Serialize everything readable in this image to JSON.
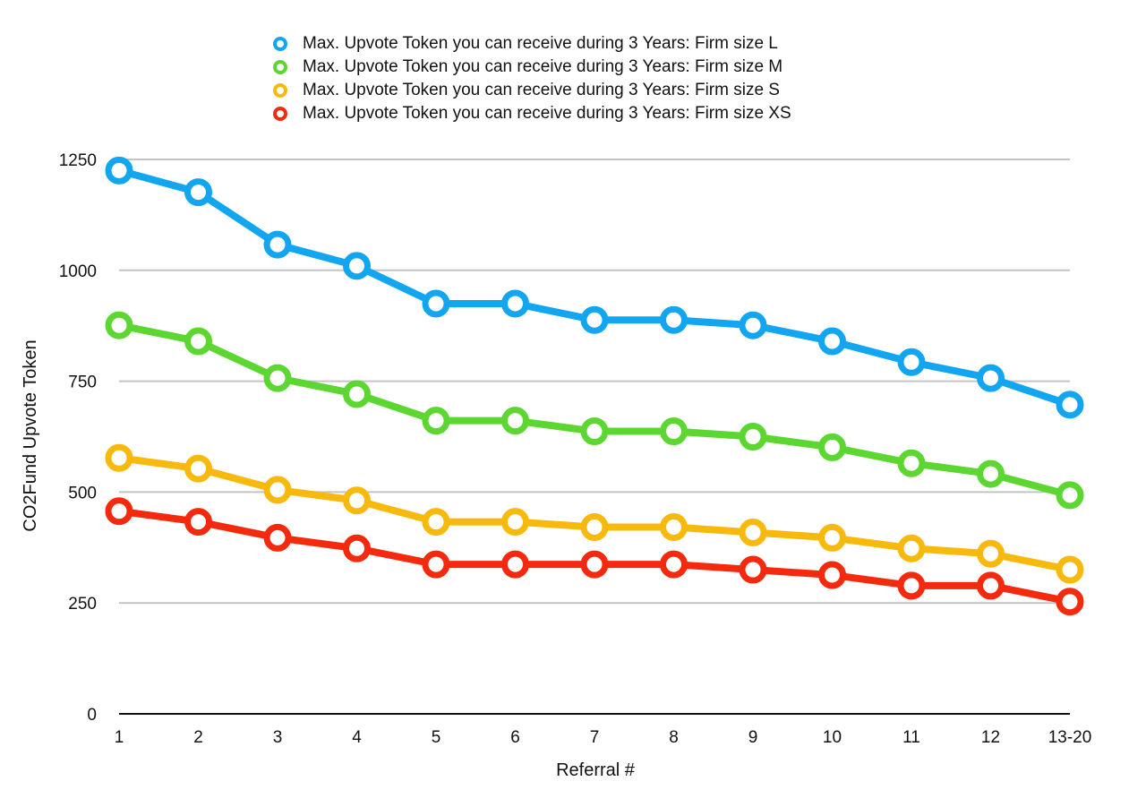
{
  "chart_data": {
    "type": "line",
    "title": "",
    "xlabel": "Referral #",
    "ylabel": "CO2Fund Upvote Token",
    "categories": [
      "1",
      "2",
      "3",
      "4",
      "5",
      "6",
      "7",
      "8",
      "9",
      "10",
      "11",
      "12",
      "13-20"
    ],
    "ylim": [
      0,
      1250
    ],
    "yticks": [
      0,
      250,
      500,
      750,
      1000,
      1250
    ],
    "grid": true,
    "legend_position": "top-center",
    "series": [
      {
        "name": "Max. Upvote Token you can receive during 3 Years: Firm size L",
        "color": "#12a5f0",
        "values": [
          1225,
          1176,
          1058,
          1010,
          925,
          925,
          888,
          888,
          876,
          840,
          793,
          757,
          697
        ]
      },
      {
        "name": "Max. Upvote Token you can receive during 3 Years: Firm size M",
        "color": "#5cd630",
        "values": [
          876,
          840,
          757,
          721,
          661,
          661,
          637,
          637,
          625,
          601,
          565,
          541,
          493
        ]
      },
      {
        "name": "Max. Upvote Token you can receive during 3 Years: Firm size S",
        "color": "#f7b90c",
        "values": [
          577,
          553,
          505,
          481,
          433,
          433,
          421,
          421,
          409,
          397,
          373,
          361,
          325
        ]
      },
      {
        "name": "Max. Upvote Token you can receive during 3 Years: Firm size XS",
        "color": "#f5290e",
        "values": [
          457,
          433,
          397,
          373,
          337,
          337,
          337,
          337,
          325,
          313,
          289,
          289,
          253
        ]
      }
    ]
  }
}
